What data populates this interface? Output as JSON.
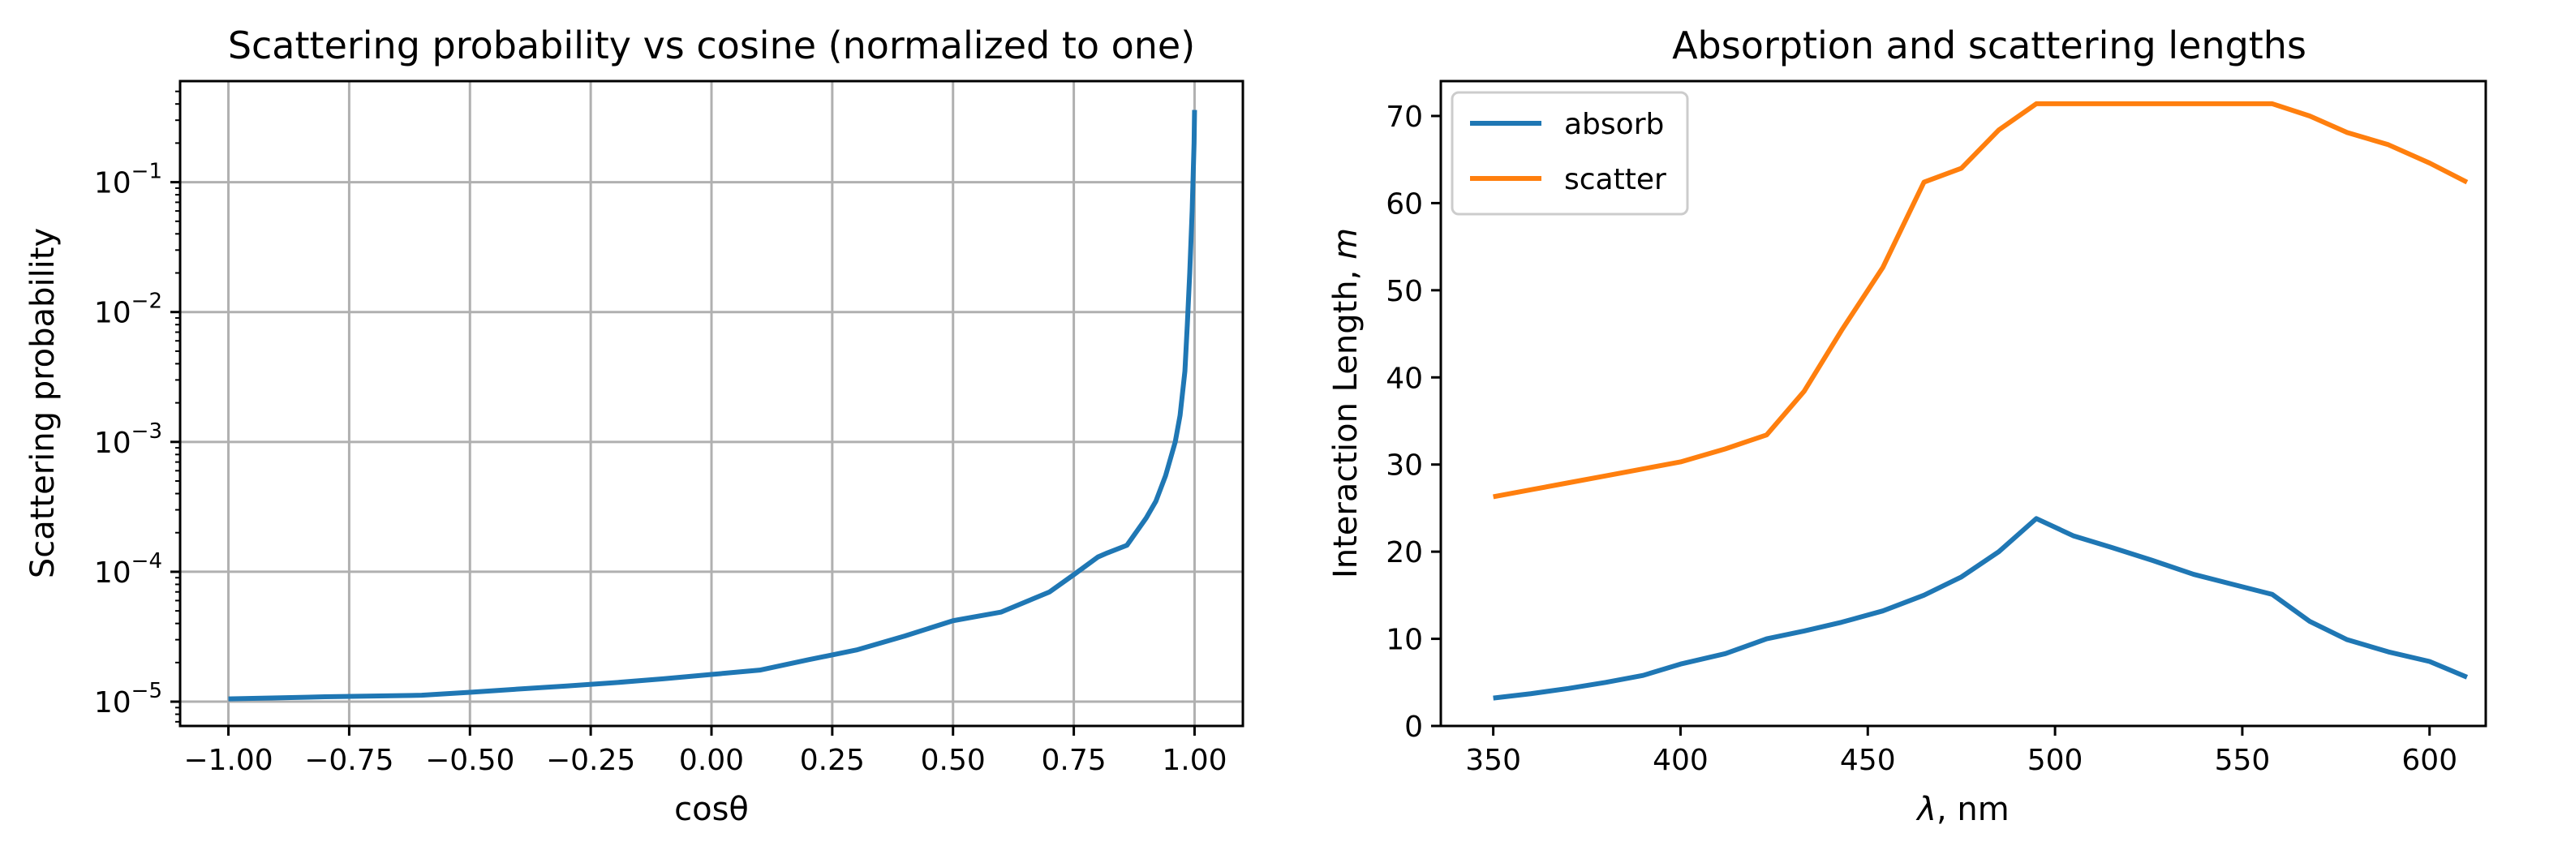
{
  "chart_data": [
    {
      "type": "line",
      "title": "Scattering probability vs cosine (normalized to one)",
      "xlabel": "cosθ",
      "ylabel": "Scattering probability",
      "yscale": "log",
      "grid": true,
      "xlim": [
        -1.1,
        1.1
      ],
      "ylim": [
        6.5e-06,
        0.6
      ],
      "xticks": [
        -1.0,
        -0.75,
        -0.5,
        -0.25,
        0.0,
        0.25,
        0.5,
        0.75,
        1.0
      ],
      "xtick_labels": [
        "−1.00",
        "−0.75",
        "−0.50",
        "−0.25",
        "0.00",
        "0.25",
        "0.50",
        "0.75",
        "1.00"
      ],
      "yticks": [
        1e-05,
        0.0001,
        0.001,
        0.01,
        0.1
      ],
      "ytick_labels": [
        {
          "base": "10",
          "exp": "−5"
        },
        {
          "base": "10",
          "exp": "−4"
        },
        {
          "base": "10",
          "exp": "−3"
        },
        {
          "base": "10",
          "exp": "−2"
        },
        {
          "base": "10",
          "exp": "−1"
        }
      ],
      "series": [
        {
          "name": "scattering probability",
          "color": "#1f77b4",
          "x": [
            -1.0,
            -0.9,
            -0.8,
            -0.6,
            -0.5,
            -0.4,
            -0.3,
            -0.2,
            -0.1,
            0.0,
            0.1,
            0.2,
            0.3,
            0.4,
            0.5,
            0.6,
            0.7,
            0.75,
            0.8,
            0.82,
            0.86,
            0.9,
            0.92,
            0.94,
            0.96,
            0.97,
            0.98,
            0.985,
            0.99,
            0.995,
            0.999,
            1.0
          ],
          "y": [
            1.05e-05,
            1.07e-05,
            1.09e-05,
            1.12e-05,
            1.18e-05,
            1.25e-05,
            1.32e-05,
            1.4e-05,
            1.5e-05,
            1.62e-05,
            1.75e-05,
            2.1e-05,
            2.5e-05,
            3.2e-05,
            4.2e-05,
            4.9e-05,
            7e-05,
            9.5e-05,
            0.00013,
            0.00014,
            0.00016,
            0.00026,
            0.00035,
            0.00055,
            0.001,
            0.0016,
            0.0035,
            0.008,
            0.02,
            0.06,
            0.2,
            0.36
          ]
        }
      ]
    },
    {
      "type": "line",
      "title": "Absorption and scattering  lengths",
      "xlabel_italic": "λ",
      "xlabel_rest": ", nm",
      "ylabel_plain": "Interaction Length, ",
      "ylabel_italic": "m",
      "xlim": [
        336,
        615
      ],
      "ylim": [
        0,
        74
      ],
      "xticks": [
        350,
        400,
        450,
        500,
        550,
        600
      ],
      "xtick_labels": [
        "350",
        "400",
        "450",
        "500",
        "550",
        "600"
      ],
      "yticks": [
        0,
        10,
        20,
        30,
        40,
        50,
        60,
        70
      ],
      "ytick_labels": [
        "0",
        "10",
        "20",
        "30",
        "40",
        "50",
        "60",
        "70"
      ],
      "grid": false,
      "legend_position": "top-left",
      "series": [
        {
          "name": "absorb",
          "color": "#1f77b4",
          "x": [
            350,
            360,
            370,
            380,
            390,
            400,
            412,
            423,
            433,
            443,
            454,
            465,
            475,
            485,
            495,
            505,
            515,
            526,
            537,
            547,
            558,
            568,
            578,
            589,
            600,
            610
          ],
          "y": [
            3.2,
            3.7,
            4.3,
            5.0,
            5.8,
            7.1,
            8.3,
            10.0,
            10.9,
            11.9,
            13.2,
            15.0,
            17.1,
            20.0,
            23.8,
            21.8,
            20.5,
            19.0,
            17.4,
            16.3,
            15.1,
            12.0,
            9.9,
            8.5,
            7.4,
            5.6
          ]
        },
        {
          "name": "scatter",
          "color": "#ff7f0e",
          "x": [
            350,
            360,
            370,
            380,
            390,
            400,
            412,
            423,
            433,
            443,
            454,
            465,
            475,
            485,
            495,
            505,
            515,
            526,
            537,
            547,
            558,
            568,
            578,
            589,
            600,
            610
          ],
          "y": [
            26.3,
            27.1,
            27.9,
            28.7,
            29.5,
            30.3,
            31.8,
            33.4,
            38.4,
            45.4,
            52.6,
            62.4,
            64.0,
            68.4,
            71.4,
            71.4,
            71.4,
            71.4,
            71.4,
            71.4,
            71.4,
            70.0,
            68.1,
            66.7,
            64.6,
            62.4
          ]
        }
      ]
    }
  ]
}
